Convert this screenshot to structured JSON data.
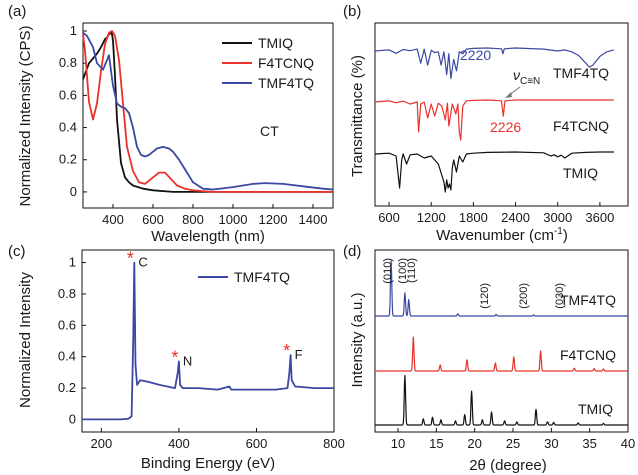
{
  "chart_data": [
    {
      "panel": "(a)",
      "type": "line",
      "xlabel": "Wavelength (nm)",
      "ylabel": "Normalized Intensity (CPS)",
      "xlim": [
        250,
        1500
      ],
      "ylim": [
        -0.1,
        1.05
      ],
      "xticks": [
        "400",
        "600",
        "800",
        "1000",
        "1200",
        "1400"
      ],
      "yticks": [
        "0",
        "0.2",
        "0.4",
        "0.6",
        "0.8",
        "1"
      ],
      "legend_position": "top-right",
      "annotation": "CT",
      "series": [
        {
          "name": "TMIQ",
          "color": "#111111",
          "x": [
            250,
            280,
            300,
            320,
            340,
            360,
            370,
            380,
            390,
            395,
            400,
            410,
            420,
            440,
            460,
            480,
            500,
            550,
            600,
            700,
            800,
            900,
            1000,
            1200,
            1500
          ],
          "y": [
            0.7,
            0.8,
            0.83,
            0.86,
            0.9,
            0.95,
            0.96,
            0.98,
            0.99,
            0.98,
            0.94,
            0.72,
            0.45,
            0.18,
            0.09,
            0.06,
            0.04,
            0.02,
            0.01,
            0.0,
            0.0,
            0.0,
            0.0,
            0.0,
            0.0
          ]
        },
        {
          "name": "F4TCNQ",
          "color": "#e8322a",
          "x": [
            250,
            260,
            280,
            300,
            320,
            340,
            360,
            380,
            395,
            410,
            430,
            450,
            470,
            500,
            530,
            560,
            600,
            630,
            660,
            690,
            720,
            760,
            800,
            850,
            900,
            1000,
            1200,
            1500
          ],
          "y": [
            0.98,
            0.88,
            0.56,
            0.45,
            0.55,
            0.75,
            0.92,
            0.99,
            1.0,
            0.97,
            0.82,
            0.55,
            0.28,
            0.13,
            0.06,
            0.05,
            0.09,
            0.12,
            0.12,
            0.08,
            0.04,
            0.02,
            0.01,
            0.005,
            0.0,
            0.0,
            0.0,
            0.0
          ]
        },
        {
          "name": "TMF4TQ",
          "color": "#3a48a3",
          "x": [
            250,
            270,
            300,
            320,
            350,
            380,
            400,
            420,
            440,
            460,
            480,
            500,
            520,
            540,
            560,
            580,
            600,
            620,
            650,
            680,
            700,
            730,
            760,
            800,
            850,
            900,
            1000,
            1100,
            1160,
            1250,
            1350,
            1450,
            1500
          ],
          "y": [
            0.99,
            0.97,
            0.9,
            0.8,
            0.76,
            0.85,
            0.66,
            0.55,
            0.53,
            0.52,
            0.49,
            0.4,
            0.28,
            0.23,
            0.22,
            0.23,
            0.25,
            0.27,
            0.28,
            0.27,
            0.25,
            0.2,
            0.14,
            0.06,
            0.02,
            0.015,
            0.03,
            0.05,
            0.055,
            0.05,
            0.035,
            0.02,
            0.015
          ]
        }
      ]
    },
    {
      "panel": "(b)",
      "type": "line",
      "xlabel": "Wavenumber (cm",
      "xlabel_sup": "-1",
      "xlabel_close": ")",
      "ylabel": "Transmittance (%)",
      "xlim": [
        400,
        4000
      ],
      "xticks": [
        "600",
        "1200",
        "1800",
        "2400",
        "3000",
        "3600"
      ],
      "labels": {
        "TMF4TQ": "TMF4TQ",
        "F4TCNQ": "F4TCNQ",
        "TMIQ": "TMIQ"
      },
      "annotations": {
        "blue_peak": "2220",
        "red_peak": "2226",
        "nu": "ν",
        "nu_sub": "C≡N"
      },
      "series": [
        {
          "name": "TMF4TQ",
          "color": "#3a48a3",
          "offset": 2,
          "x": [
            400,
            600,
            700,
            800,
            900,
            1000,
            1050,
            1100,
            1150,
            1200,
            1250,
            1300,
            1340,
            1380,
            1420,
            1450,
            1480,
            1520,
            1560,
            1600,
            1650,
            1700,
            1800,
            2000,
            2200,
            2220,
            2240,
            2400,
            2800,
            3000,
            3100,
            3200,
            3300,
            3400,
            3450,
            3500,
            3600,
            3700,
            3800
          ],
          "y": [
            0.92,
            0.95,
            0.86,
            0.96,
            0.93,
            0.97,
            0.6,
            0.97,
            0.55,
            0.94,
            0.88,
            0.9,
            0.55,
            0.9,
            0.3,
            0.85,
            0.2,
            0.7,
            0.4,
            0.9,
            0.85,
            0.97,
            0.99,
            1.0,
            0.98,
            0.85,
            0.98,
            1.0,
            0.97,
            0.92,
            0.95,
            0.9,
            0.8,
            0.6,
            0.5,
            0.55,
            0.78,
            0.9,
            0.95
          ]
        },
        {
          "name": "F4TCNQ",
          "color": "#e8322a",
          "offset": 1,
          "x": [
            400,
            600,
            700,
            800,
            900,
            1000,
            1020,
            1050,
            1100,
            1150,
            1200,
            1250,
            1300,
            1350,
            1400,
            1430,
            1450,
            1500,
            1550,
            1580,
            1600,
            1620,
            1650,
            1700,
            1800,
            2000,
            2200,
            2226,
            2250,
            2400,
            2800,
            3000,
            3200,
            3400,
            3600,
            3800
          ],
          "y": [
            0.95,
            0.98,
            0.93,
            0.97,
            0.9,
            0.95,
            0.2,
            0.9,
            0.95,
            0.55,
            0.9,
            0.6,
            0.92,
            0.85,
            0.5,
            0.92,
            0.35,
            0.9,
            0.65,
            0.9,
            0.2,
            0.0,
            0.85,
            0.98,
            0.99,
            1.0,
            0.98,
            0.6,
            0.98,
            1.0,
            1.0,
            1.0,
            1.0,
            1.0,
            1.0,
            1.0
          ]
        },
        {
          "name": "TMIQ",
          "color": "#111111",
          "offset": 0,
          "x": [
            400,
            600,
            700,
            750,
            780,
            800,
            850,
            900,
            1000,
            1100,
            1200,
            1300,
            1380,
            1400,
            1420,
            1440,
            1460,
            1480,
            1500,
            1520,
            1560,
            1600,
            1650,
            1700,
            1800,
            2000,
            2400,
            2800,
            2900,
            2950,
            3000,
            3050,
            3100,
            3200,
            3400,
            3600,
            3800
          ],
          "y": [
            0.95,
            0.97,
            0.9,
            0.1,
            0.8,
            0.95,
            0.7,
            0.93,
            0.95,
            0.85,
            0.9,
            0.7,
            0.25,
            0.0,
            0.3,
            0.1,
            0.2,
            0.05,
            0.6,
            0.8,
            0.5,
            0.9,
            0.75,
            0.95,
            0.97,
            0.99,
            1.0,
            0.98,
            0.9,
            0.93,
            0.88,
            0.92,
            0.85,
            0.97,
            0.99,
            1.0,
            1.0
          ]
        }
      ]
    },
    {
      "panel": "(c)",
      "type": "line",
      "xlabel": "Binding Energy (eV)",
      "ylabel": "Normalized Intensity",
      "xlim": [
        150,
        800
      ],
      "ylim": [
        -0.08,
        1.08
      ],
      "xticks": [
        "200",
        "400",
        "600",
        "800"
      ],
      "yticks": [
        "0",
        "0.2",
        "0.4",
        "0.6",
        "0.8",
        "1"
      ],
      "legend_position": "top-right",
      "peak_labels": [
        "C",
        "N",
        "F"
      ],
      "peak_positions": [
        285,
        400,
        688
      ],
      "peak_heights": [
        1.0,
        0.37,
        0.41
      ],
      "series": [
        {
          "name": "TMF4TQ",
          "color": "#3a48a3",
          "x": [
            150,
            200,
            250,
            270,
            278,
            282,
            285,
            288,
            292,
            300,
            320,
            350,
            390,
            397,
            400,
            403,
            410,
            450,
            500,
            530,
            535,
            540,
            600,
            650,
            680,
            685,
            688,
            691,
            700,
            750,
            800
          ],
          "y": [
            0.0,
            0.0,
            0.0,
            0.005,
            0.02,
            0.5,
            1.0,
            0.35,
            0.22,
            0.25,
            0.24,
            0.22,
            0.2,
            0.3,
            0.37,
            0.22,
            0.2,
            0.2,
            0.19,
            0.21,
            0.19,
            0.19,
            0.19,
            0.19,
            0.2,
            0.3,
            0.41,
            0.25,
            0.21,
            0.2,
            0.2
          ]
        }
      ]
    },
    {
      "panel": "(d)",
      "type": "line",
      "xlabel": "2θ (degree)",
      "ylabel": "Intensity (a.u.)",
      "xlim": [
        7,
        40
      ],
      "xticks": [
        "10",
        "15",
        "20",
        "25",
        "30",
        "35",
        "40"
      ],
      "labels": {
        "TMF4TQ": "TMF4TQ",
        "F4TCNQ": "F4TCNQ",
        "TMIQ": "TMIQ"
      },
      "reflections": [
        "(010)",
        "(100)",
        "(110)",
        "(120)",
        "(200)",
        "(030)"
      ],
      "series": [
        {
          "name": "TMF4TQ",
          "color": "#3a48a3",
          "offset": 2,
          "peaks": [
            [
              9.1,
              1.0
            ],
            [
              10.9,
              0.42
            ],
            [
              11.4,
              0.3
            ],
            [
              17.8,
              0.04
            ],
            [
              22.8,
              0.03
            ],
            [
              27.7,
              0.02
            ]
          ]
        },
        {
          "name": "F4TCNQ",
          "color": "#e8322a",
          "offset": 1,
          "peaks": [
            [
              12.0,
              0.85
            ],
            [
              15.5,
              0.15
            ],
            [
              19.0,
              0.28
            ],
            [
              22.7,
              0.2
            ],
            [
              25.1,
              0.35
            ],
            [
              28.6,
              0.5
            ],
            [
              33.0,
              0.07
            ],
            [
              35.6,
              0.06
            ],
            [
              36.8,
              0.05
            ]
          ]
        },
        {
          "name": "TMIQ",
          "color": "#111111",
          "offset": 0,
          "peaks": [
            [
              10.9,
              0.95
            ],
            [
              13.3,
              0.12
            ],
            [
              14.5,
              0.15
            ],
            [
              15.6,
              0.1
            ],
            [
              17.5,
              0.08
            ],
            [
              18.7,
              0.2
            ],
            [
              19.6,
              0.65
            ],
            [
              21.0,
              0.1
            ],
            [
              22.2,
              0.25
            ],
            [
              23.9,
              0.08
            ],
            [
              25.5,
              0.06
            ],
            [
              28.0,
              0.3
            ],
            [
              29.5,
              0.06
            ],
            [
              30.3,
              0.05
            ],
            [
              33.5,
              0.04
            ],
            [
              36.8,
              0.03
            ]
          ]
        }
      ]
    }
  ]
}
